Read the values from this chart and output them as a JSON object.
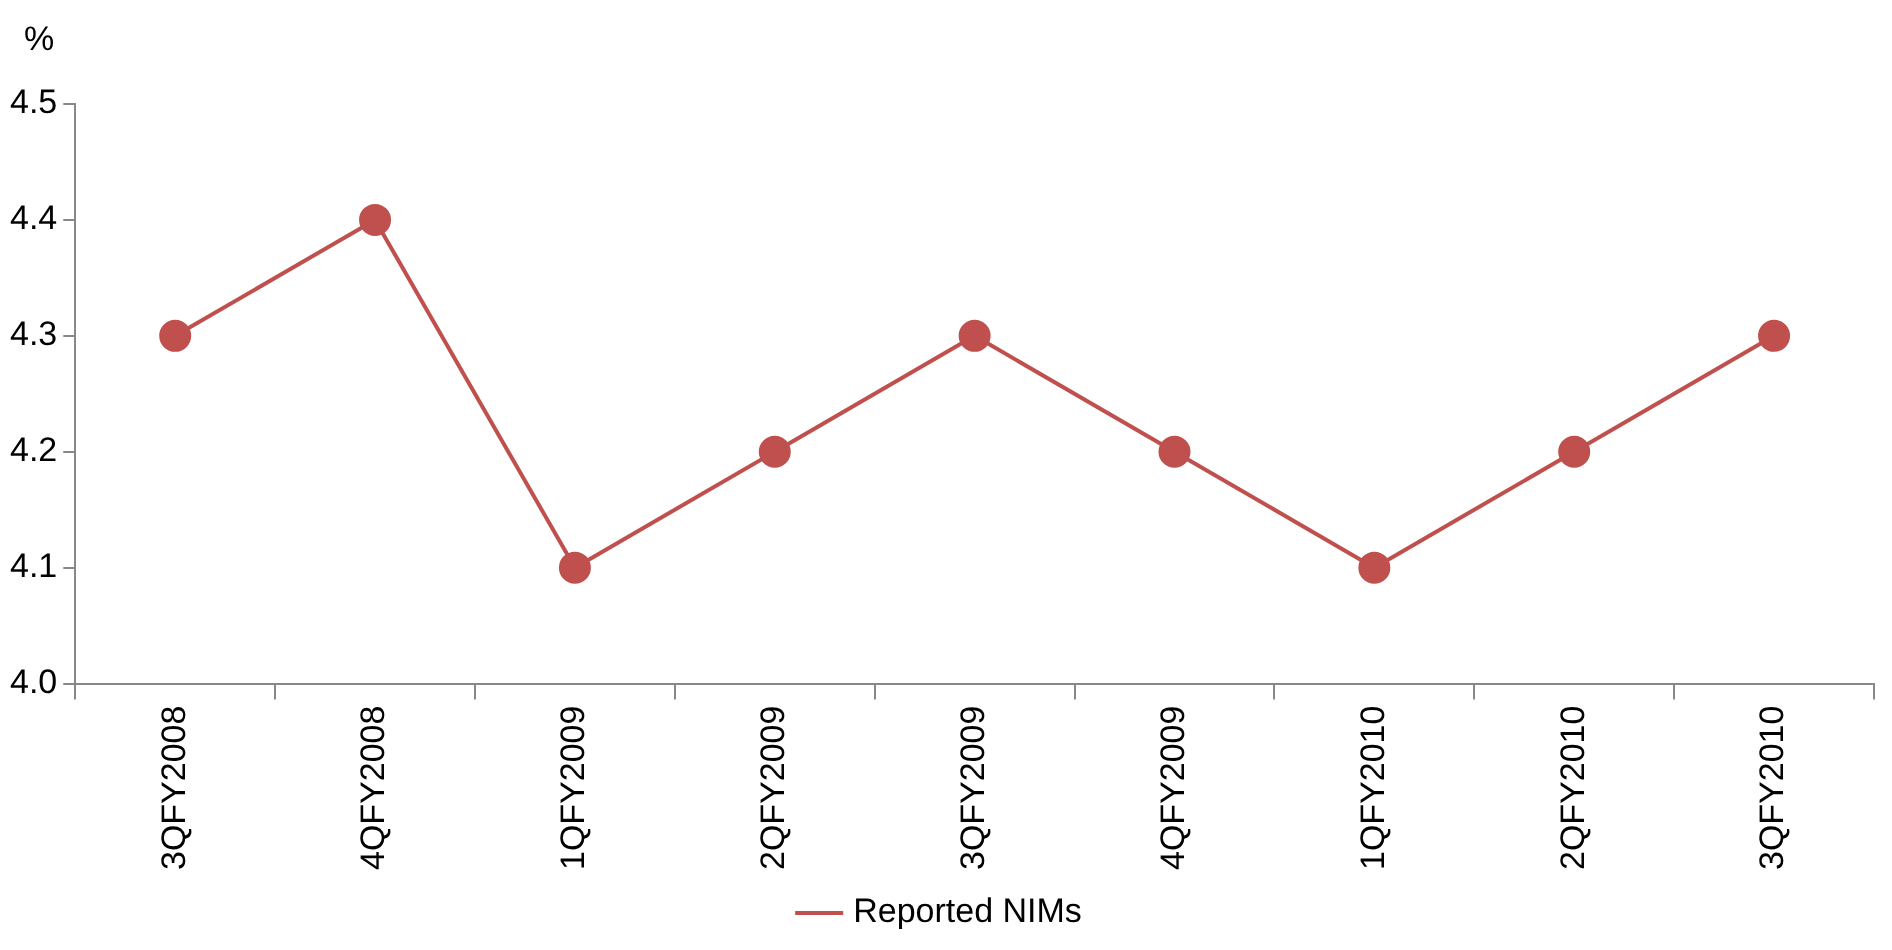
{
  "chart_data": {
    "type": "line",
    "ylabel": "%",
    "categories": [
      "3QFY2008",
      "4QFY2008",
      "1QFY2009",
      "2QFY2009",
      "3QFY2009",
      "4QFY2009",
      "1QFY2010",
      "2QFY2010",
      "3QFY2010"
    ],
    "series": [
      {
        "name": "Reported NIMs",
        "color": "#c0504d",
        "values": [
          4.3,
          4.4,
          4.1,
          4.2,
          4.3,
          4.2,
          4.1,
          4.2,
          4.3
        ]
      }
    ],
    "ylim": [
      4.0,
      4.5
    ],
    "yticks": [
      {
        "value": 4,
        "label": "4.0"
      },
      {
        "value": 4.1,
        "label": "4.1"
      },
      {
        "value": 4.2,
        "label": "4.2"
      },
      {
        "value": 4.3,
        "label": "4.3"
      },
      {
        "value": 4.4,
        "label": "4.4"
      },
      {
        "value": 4.5,
        "label": "4.5"
      }
    ],
    "grid": false,
    "legend": "bottom",
    "marker": "circle",
    "line_style": "solid"
  }
}
